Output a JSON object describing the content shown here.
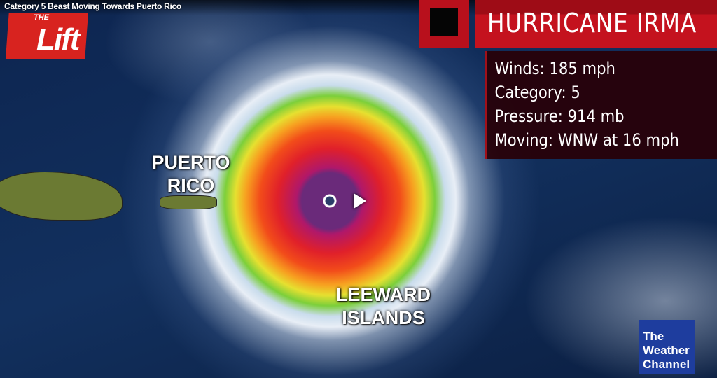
{
  "video": {
    "title": "Category 5 Beast Moving Towards Puerto Rico",
    "play_icon": "play-icon"
  },
  "logo_lift": {
    "the": "THE",
    "lift": "Lift"
  },
  "graphic": {
    "header": "HURRICANE IRMA",
    "stats": [
      "Winds: 185 mph",
      "Category: 5",
      "Pressure:  914 mb",
      "Moving: WNW at 16 mph"
    ]
  },
  "map_labels": {
    "puerto_rico": [
      "PUERTO",
      "RICO"
    ],
    "leeward": [
      "LEEWARD",
      "ISLANDS"
    ]
  },
  "brand": {
    "lines": [
      "The",
      "Weather",
      "Channel"
    ],
    "color": "#1e3d9e"
  },
  "colors": {
    "accent": "#c4121e"
  }
}
